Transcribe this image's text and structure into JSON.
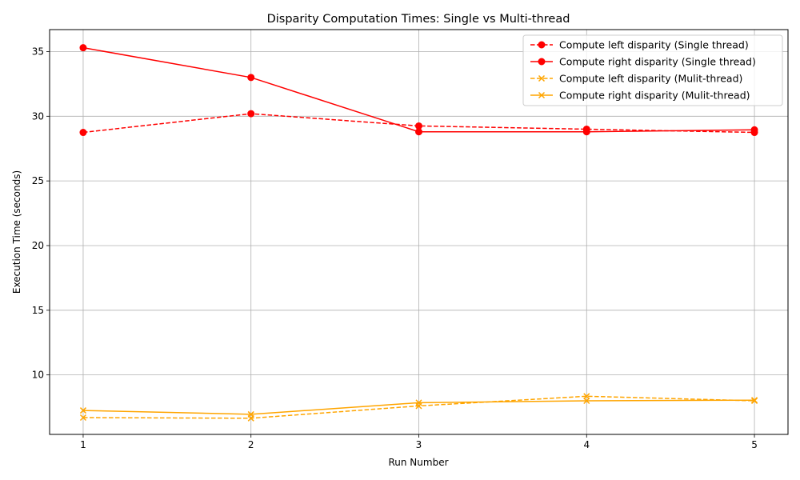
{
  "chart_data": {
    "type": "line",
    "title": "Disparity Computation Times: Single vs Multi-thread",
    "xlabel": "Run Number",
    "ylabel": "Execution Time (seconds)",
    "x": [
      1,
      2,
      3,
      4,
      5
    ],
    "x_ticks": [
      "1",
      "2",
      "3",
      "4",
      "5"
    ],
    "y_ticks": [
      "10",
      "15",
      "20",
      "25",
      "30",
      "35"
    ],
    "y_tick_values": [
      10,
      15,
      20,
      25,
      30,
      35
    ],
    "xlim": [
      0.8,
      5.2
    ],
    "ylim": [
      5.4,
      36.7
    ],
    "grid": true,
    "legend_position": "top-right",
    "series": [
      {
        "name": "Compute left disparity (Single thread)",
        "values": [
          28.75,
          30.2,
          29.25,
          29.0,
          28.75
        ],
        "color": "#ff0000",
        "dash": "dashed",
        "marker": "circle"
      },
      {
        "name": "Compute right disparity (Single thread)",
        "values": [
          35.3,
          33.0,
          28.8,
          28.8,
          28.95
        ],
        "color": "#ff0000",
        "dash": "solid",
        "marker": "circle"
      },
      {
        "name": "Compute left disparity (Mulit-thread)",
        "values": [
          6.7,
          6.65,
          7.6,
          8.35,
          8.0
        ],
        "color": "#ffa500",
        "dash": "dashed",
        "marker": "x"
      },
      {
        "name": "Compute right disparity (Mulit-thread)",
        "values": [
          7.25,
          6.95,
          7.85,
          8.0,
          8.05
        ],
        "color": "#ffa500",
        "dash": "solid",
        "marker": "x"
      }
    ]
  }
}
